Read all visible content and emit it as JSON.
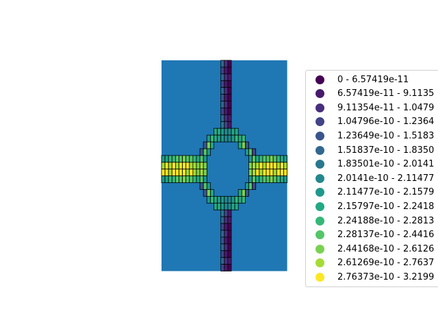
{
  "chart_data": {
    "type": "heatmap",
    "title": "",
    "background_color": "#1f77b4",
    "cell_edge_color": "#000000",
    "legend": {
      "placement": "right",
      "classes": [
        {
          "label": "0 - 6.57419e-11",
          "color": "#440154"
        },
        {
          "label": "6.57419e-11 - 9.1135",
          "color": "#481a6c"
        },
        {
          "label": "9.11354e-11 - 1.0479",
          "color": "#472f7d"
        },
        {
          "label": "1.04796e-10 - 1.2364",
          "color": "#414487"
        },
        {
          "label": "1.23649e-10 - 1.5183",
          "color": "#39568c"
        },
        {
          "label": "1.51837e-10 - 1.8350",
          "color": "#31688e"
        },
        {
          "label": "1.83501e-10 - 2.0141",
          "color": "#2a788e"
        },
        {
          "label": "2.0141e-10 - 2.11477",
          "color": "#23888e"
        },
        {
          "label": "2.11477e-10 - 2.1579",
          "color": "#1f988b"
        },
        {
          "label": "2.15797e-10 - 2.2418",
          "color": "#22a884"
        },
        {
          "label": "2.24188e-10 - 2.2813",
          "color": "#35b779"
        },
        {
          "label": "2.28137e-10 - 2.4416",
          "color": "#54c568"
        },
        {
          "label": "2.44168e-10 - 2.6126",
          "color": "#7ad151"
        },
        {
          "label": "2.61269e-10 - 2.7637",
          "color": "#a5db36"
        },
        {
          "label": "2.76373e-10 - 3.2199",
          "color": "#fde725"
        }
      ]
    },
    "cells": [
      [
        17,
        0,
        5
      ],
      [
        18,
        0,
        2
      ],
      [
        19,
        0,
        0
      ],
      [
        17,
        1,
        3
      ],
      [
        18,
        1,
        1
      ],
      [
        19,
        1,
        0
      ],
      [
        17,
        2,
        5
      ],
      [
        18,
        2,
        2
      ],
      [
        19,
        2,
        1
      ],
      [
        17,
        3,
        3
      ],
      [
        18,
        3,
        1
      ],
      [
        19,
        3,
        0
      ],
      [
        17,
        4,
        5
      ],
      [
        18,
        4,
        2
      ],
      [
        19,
        4,
        0
      ],
      [
        17,
        5,
        4
      ],
      [
        18,
        5,
        1
      ],
      [
        19,
        5,
        0
      ],
      [
        17,
        6,
        5
      ],
      [
        18,
        6,
        2
      ],
      [
        19,
        6,
        0
      ],
      [
        17,
        7,
        3
      ],
      [
        18,
        7,
        1
      ],
      [
        19,
        7,
        0
      ],
      [
        17,
        8,
        5
      ],
      [
        18,
        8,
        2
      ],
      [
        19,
        8,
        1
      ],
      [
        17,
        9,
        6
      ],
      [
        18,
        9,
        3
      ],
      [
        19,
        9,
        1
      ],
      [
        15,
        10,
        9
      ],
      [
        16,
        10,
        9
      ],
      [
        17,
        10,
        8
      ],
      [
        18,
        10,
        7
      ],
      [
        19,
        10,
        7
      ],
      [
        20,
        10,
        9
      ],
      [
        21,
        10,
        9
      ],
      [
        13,
        11,
        8
      ],
      [
        14,
        11,
        10
      ],
      [
        15,
        11,
        9
      ],
      [
        16,
        11,
        8
      ],
      [
        17,
        11,
        8
      ],
      [
        18,
        11,
        7
      ],
      [
        19,
        11,
        7
      ],
      [
        20,
        11,
        8
      ],
      [
        21,
        11,
        10
      ],
      [
        22,
        11,
        9
      ],
      [
        23,
        11,
        10
      ],
      [
        12,
        12,
        4
      ],
      [
        13,
        12,
        12
      ],
      [
        14,
        12,
        9
      ],
      [
        22,
        12,
        9
      ],
      [
        23,
        12,
        12
      ],
      [
        24,
        12,
        4
      ],
      [
        11,
        13,
        4
      ],
      [
        12,
        13,
        11
      ],
      [
        13,
        13,
        8
      ],
      [
        24,
        13,
        8
      ],
      [
        25,
        13,
        11
      ],
      [
        26,
        13,
        3
      ],
      [
        0,
        14,
        8
      ],
      [
        1,
        14,
        9
      ],
      [
        2,
        14,
        10
      ],
      [
        3,
        14,
        10
      ],
      [
        4,
        14,
        11
      ],
      [
        5,
        14,
        11
      ],
      [
        6,
        14,
        12
      ],
      [
        7,
        14,
        11
      ],
      [
        8,
        14,
        11
      ],
      [
        9,
        14,
        10
      ],
      [
        10,
        14,
        9
      ],
      [
        11,
        14,
        11
      ],
      [
        12,
        14,
        8
      ],
      [
        25,
        14,
        8
      ],
      [
        26,
        14,
        11
      ],
      [
        27,
        14,
        9
      ],
      [
        28,
        14,
        10
      ],
      [
        29,
        14,
        11
      ],
      [
        30,
        14,
        11
      ],
      [
        31,
        14,
        12
      ],
      [
        32,
        14,
        11
      ],
      [
        33,
        14,
        10
      ],
      [
        34,
        14,
        9
      ],
      [
        35,
        14,
        8
      ],
      [
        0,
        15,
        13
      ],
      [
        1,
        15,
        14
      ],
      [
        2,
        15,
        13
      ],
      [
        3,
        15,
        14
      ],
      [
        4,
        15,
        13
      ],
      [
        5,
        15,
        14
      ],
      [
        6,
        15,
        14
      ],
      [
        7,
        15,
        14
      ],
      [
        8,
        15,
        13
      ],
      [
        9,
        15,
        13
      ],
      [
        10,
        15,
        12
      ],
      [
        11,
        15,
        13
      ],
      [
        12,
        15,
        12
      ],
      [
        25,
        15,
        12
      ],
      [
        26,
        15,
        13
      ],
      [
        27,
        15,
        13
      ],
      [
        28,
        15,
        14
      ],
      [
        29,
        15,
        13
      ],
      [
        30,
        15,
        14
      ],
      [
        31,
        15,
        14
      ],
      [
        32,
        15,
        14
      ],
      [
        33,
        15,
        13
      ],
      [
        34,
        15,
        14
      ],
      [
        35,
        15,
        13
      ],
      [
        0,
        16,
        14
      ],
      [
        1,
        16,
        14
      ],
      [
        2,
        16,
        13
      ],
      [
        3,
        16,
        14
      ],
      [
        4,
        16,
        14
      ],
      [
        5,
        16,
        14
      ],
      [
        6,
        16,
        14
      ],
      [
        7,
        16,
        13
      ],
      [
        8,
        16,
        14
      ],
      [
        9,
        16,
        13
      ],
      [
        10,
        16,
        12
      ],
      [
        11,
        16,
        13
      ],
      [
        12,
        16,
        12
      ],
      [
        25,
        16,
        12
      ],
      [
        26,
        16,
        13
      ],
      [
        27,
        16,
        14
      ],
      [
        28,
        16,
        13
      ],
      [
        29,
        16,
        14
      ],
      [
        30,
        16,
        14
      ],
      [
        31,
        16,
        14
      ],
      [
        32,
        16,
        13
      ],
      [
        33,
        16,
        14
      ],
      [
        34,
        16,
        14
      ],
      [
        35,
        16,
        14
      ],
      [
        0,
        17,
        8
      ],
      [
        1,
        17,
        9
      ],
      [
        2,
        17,
        10
      ],
      [
        3,
        17,
        10
      ],
      [
        4,
        17,
        11
      ],
      [
        5,
        17,
        11
      ],
      [
        6,
        17,
        12
      ],
      [
        7,
        17,
        11
      ],
      [
        8,
        17,
        11
      ],
      [
        9,
        17,
        10
      ],
      [
        10,
        17,
        9
      ],
      [
        11,
        17,
        11
      ],
      [
        12,
        17,
        8
      ],
      [
        25,
        17,
        8
      ],
      [
        26,
        17,
        11
      ],
      [
        27,
        17,
        9
      ],
      [
        28,
        17,
        10
      ],
      [
        29,
        17,
        11
      ],
      [
        30,
        17,
        11
      ],
      [
        31,
        17,
        12
      ],
      [
        32,
        17,
        11
      ],
      [
        33,
        17,
        10
      ],
      [
        34,
        17,
        9
      ],
      [
        35,
        17,
        8
      ],
      [
        11,
        18,
        4
      ],
      [
        12,
        18,
        11
      ],
      [
        13,
        18,
        8
      ],
      [
        24,
        18,
        8
      ],
      [
        25,
        18,
        11
      ],
      [
        26,
        18,
        3
      ],
      [
        12,
        19,
        4
      ],
      [
        13,
        19,
        12
      ],
      [
        14,
        19,
        9
      ],
      [
        22,
        19,
        9
      ],
      [
        23,
        19,
        12
      ],
      [
        24,
        19,
        4
      ],
      [
        13,
        20,
        8
      ],
      [
        14,
        20,
        10
      ],
      [
        15,
        20,
        9
      ],
      [
        16,
        20,
        8
      ],
      [
        17,
        20,
        8
      ],
      [
        18,
        20,
        7
      ],
      [
        19,
        20,
        7
      ],
      [
        20,
        20,
        8
      ],
      [
        21,
        20,
        10
      ],
      [
        22,
        20,
        9
      ],
      [
        23,
        20,
        10
      ],
      [
        15,
        21,
        9
      ],
      [
        16,
        21,
        9
      ],
      [
        17,
        21,
        8
      ],
      [
        18,
        21,
        7
      ],
      [
        19,
        21,
        7
      ],
      [
        20,
        21,
        9
      ],
      [
        21,
        21,
        9
      ],
      [
        17,
        22,
        6
      ],
      [
        18,
        22,
        3
      ],
      [
        19,
        22,
        1
      ],
      [
        17,
        23,
        5
      ],
      [
        18,
        23,
        2
      ],
      [
        19,
        23,
        1
      ],
      [
        17,
        24,
        3
      ],
      [
        18,
        24,
        1
      ],
      [
        19,
        24,
        0
      ],
      [
        17,
        25,
        5
      ],
      [
        18,
        25,
        2
      ],
      [
        19,
        25,
        0
      ],
      [
        17,
        26,
        4
      ],
      [
        18,
        26,
        1
      ],
      [
        19,
        26,
        0
      ],
      [
        17,
        27,
        5
      ],
      [
        18,
        27,
        2
      ],
      [
        19,
        27,
        0
      ],
      [
        17,
        28,
        3
      ],
      [
        18,
        28,
        1
      ],
      [
        19,
        28,
        0
      ],
      [
        17,
        29,
        5
      ],
      [
        18,
        29,
        2
      ],
      [
        19,
        29,
        1
      ],
      [
        17,
        30,
        3
      ],
      [
        18,
        30,
        1
      ],
      [
        19,
        30,
        0
      ]
    ]
  }
}
